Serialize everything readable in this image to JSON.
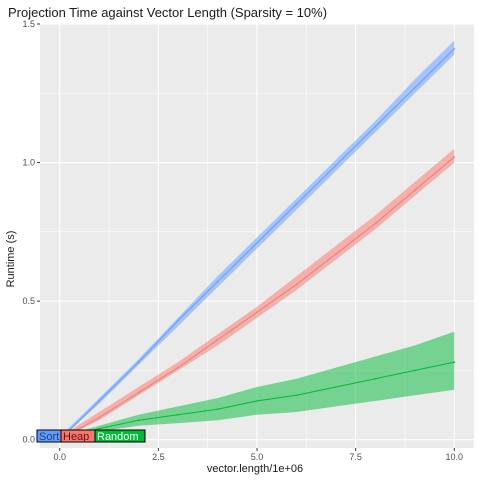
{
  "chart_data": {
    "type": "line",
    "title": "Projection Time against Vector Length (Sparsity = 10%)",
    "xlabel": "vector.length/1e+06",
    "ylabel": "Runtime (s)",
    "xlim": [
      -0.5,
      10.5
    ],
    "ylim": [
      -0.03,
      1.5
    ],
    "x_ticks": [
      0.0,
      2.5,
      5.0,
      7.5,
      10.0
    ],
    "x_tick_labels": [
      "0.0",
      "2.5",
      "5.0",
      "7.5",
      "10.0"
    ],
    "y_ticks": [
      0.0,
      0.5,
      1.0,
      1.5
    ],
    "y_tick_labels": [
      "0.0",
      "0.5",
      "1.0",
      "1.5"
    ],
    "grid": true,
    "background": "#ebebeb",
    "legend_position": "bottom-left",
    "series": [
      {
        "name": "Sort",
        "color": "#619cff",
        "x": [
          0,
          1,
          2,
          3,
          4,
          5,
          6,
          7,
          8,
          9,
          10
        ],
        "values": [
          0.0,
          0.14,
          0.28,
          0.43,
          0.57,
          0.71,
          0.85,
          0.99,
          1.13,
          1.27,
          1.41
        ],
        "band_low": [
          0.0,
          0.13,
          0.27,
          0.41,
          0.55,
          0.69,
          0.83,
          0.97,
          1.11,
          1.25,
          1.39
        ],
        "band_high": [
          0.01,
          0.15,
          0.29,
          0.44,
          0.59,
          0.73,
          0.87,
          1.01,
          1.15,
          1.3,
          1.44
        ]
      },
      {
        "name": "Heap",
        "color": "#f8766d",
        "x": [
          0,
          1,
          2,
          3,
          4,
          5,
          6,
          7,
          8,
          9,
          10
        ],
        "values": [
          0.0,
          0.08,
          0.17,
          0.26,
          0.36,
          0.46,
          0.56,
          0.67,
          0.78,
          0.9,
          1.02
        ],
        "band_low": [
          0.0,
          0.07,
          0.16,
          0.25,
          0.34,
          0.44,
          0.54,
          0.65,
          0.76,
          0.88,
          1.0
        ],
        "band_high": [
          0.01,
          0.1,
          0.19,
          0.28,
          0.38,
          0.48,
          0.59,
          0.7,
          0.81,
          0.93,
          1.05
        ]
      },
      {
        "name": "Random",
        "color": "#00ba38",
        "x": [
          0,
          1,
          2,
          3,
          4,
          5,
          6,
          7,
          8,
          9,
          10
        ],
        "values": [
          0.0,
          0.04,
          0.07,
          0.09,
          0.11,
          0.14,
          0.16,
          0.19,
          0.22,
          0.25,
          0.28
        ],
        "band_low": [
          0.0,
          0.03,
          0.05,
          0.06,
          0.07,
          0.09,
          0.1,
          0.12,
          0.14,
          0.16,
          0.18
        ],
        "band_high": [
          0.01,
          0.05,
          0.09,
          0.12,
          0.15,
          0.19,
          0.22,
          0.26,
          0.3,
          0.34,
          0.39
        ]
      }
    ],
    "legend": [
      {
        "label": "Sort",
        "fill": "#619cff"
      },
      {
        "label": "Heap",
        "fill": "#f8766d"
      },
      {
        "label": "Random",
        "fill": "#00ba38"
      }
    ]
  }
}
